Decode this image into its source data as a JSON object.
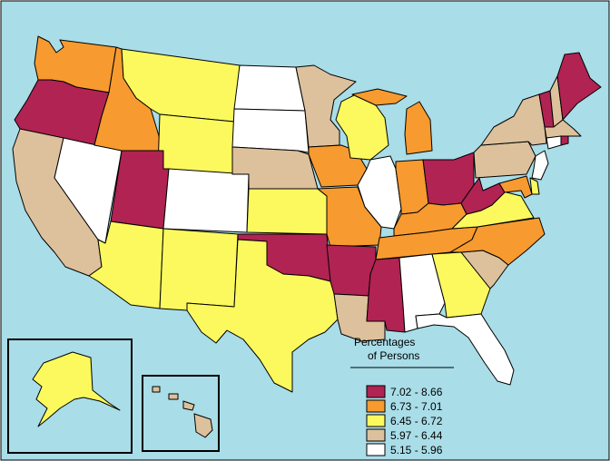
{
  "colors": {
    "ocean": "#a9dde8",
    "class1": "#b02352",
    "class2": "#f79a2f",
    "class3": "#fbf95e",
    "class4": "#ddc19c",
    "class5": "#ffffff"
  },
  "legend": {
    "title_line1": "Percentages",
    "title_line2": "of Persons",
    "items": [
      {
        "label": "7.02 - 8.66",
        "color": "#b02352"
      },
      {
        "label": "6.73 - 7.01",
        "color": "#f79a2f"
      },
      {
        "label": "6.45 - 6.72",
        "color": "#fbf95e"
      },
      {
        "label": "5.97 - 6.44",
        "color": "#ddc19c"
      },
      {
        "label": "5.15 - 5.96",
        "color": "#ffffff"
      }
    ]
  },
  "states": {
    "WA": "class2",
    "OR": "class1",
    "CA": "class4",
    "NV": "class5",
    "ID": "class2",
    "MT": "class3",
    "WY": "class3",
    "UT": "class1",
    "AZ": "class3",
    "CO": "class5",
    "NM": "class3",
    "ND": "class5",
    "SD": "class5",
    "NE": "class4",
    "KS": "class3",
    "OK": "class1",
    "TX": "class3",
    "MN": "class4",
    "IA": "class2",
    "MO": "class2",
    "AR": "class1",
    "LA": "class4",
    "WI": "class3",
    "IL": "class5",
    "MI": "class2",
    "IN": "class2",
    "OH": "class1",
    "KY": "class2",
    "TN": "class2",
    "MS": "class1",
    "AL": "class5",
    "GA": "class3",
    "FL": "class5",
    "SC": "class4",
    "NC": "class2",
    "VA": "class3",
    "WV": "class1",
    "PA": "class4",
    "NY": "class4",
    "VT": "class1",
    "NH": "class4",
    "ME": "class1",
    "MA": "class4",
    "RI": "class1",
    "CT": "class5",
    "NJ": "class5",
    "DE": "class3",
    "MD": "class2",
    "AK": "class3",
    "HI": "class4"
  }
}
